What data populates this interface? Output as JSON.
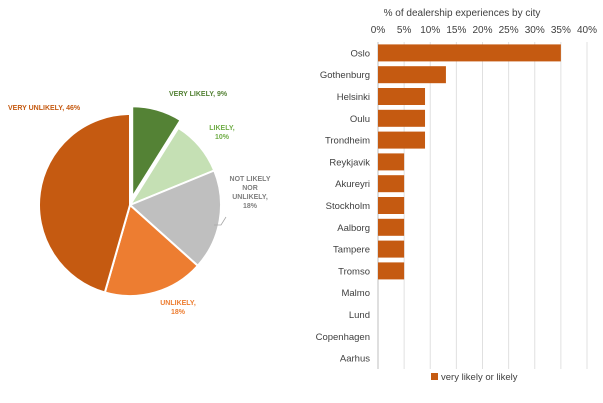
{
  "chart_data": [
    {
      "type": "pie",
      "slices": [
        {
          "label": "VERY LIKELY",
          "percent_label": "9%",
          "value": 9,
          "color": "#548235",
          "label_color": "#548235",
          "exploded": true
        },
        {
          "label": "LIKELY",
          "percent_label": "10%",
          "value": 10,
          "color": "#c5e0b4",
          "label_color": "#70ad47",
          "exploded": false
        },
        {
          "label": "NOT LIKELY NOR UNLIKELY",
          "percent_label": "18%",
          "value": 18,
          "color": "#bfbfbf",
          "label_color": "#7f7f7f",
          "exploded": false
        },
        {
          "label": "UNLIKELY",
          "percent_label": "18%",
          "value": 18,
          "color": "#ed7d31",
          "label_color": "#ed7d31",
          "exploded": false
        },
        {
          "label": "VERY UNLIKELY",
          "percent_label": "46%",
          "value": 46,
          "color": "#c55a11",
          "label_color": "#c55a11",
          "exploded": false
        }
      ]
    },
    {
      "type": "bar",
      "orientation": "horizontal",
      "title": "% of dealership experiences by city",
      "categories": [
        "Oslo",
        "Gothenburg",
        "Helsinki",
        "Oulu",
        "Trondheim",
        "Reykjavik",
        "Akureyri",
        "Stockholm",
        "Aalborg",
        "Tampere",
        "Tromso",
        "Malmo",
        "Lund",
        "Copenhagen",
        "Aarhus"
      ],
      "series": [
        {
          "name": "very likely or likely",
          "color": "#c55a11",
          "values": [
            35,
            13,
            9,
            9,
            9,
            5,
            5,
            5,
            5,
            5,
            5,
            0,
            0,
            0,
            0
          ]
        }
      ],
      "xlim": [
        0,
        40
      ],
      "ticks": [
        "0%",
        "5%",
        "10%",
        "15%",
        "20%",
        "25%",
        "30%",
        "35%",
        "40%"
      ],
      "xaxis_position": "top",
      "grid": true,
      "legend_position": "bottom"
    }
  ]
}
